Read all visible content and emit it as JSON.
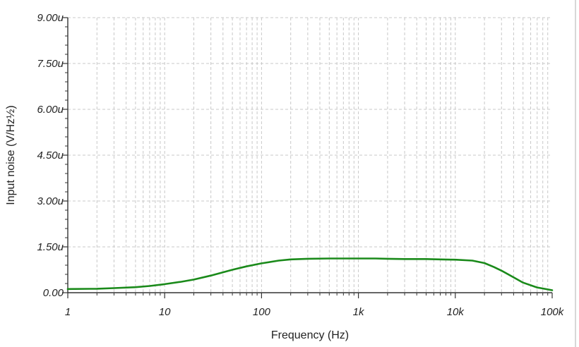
{
  "chart_data": {
    "type": "line",
    "title": "",
    "xlabel": "Frequency (Hz)",
    "ylabel": "Input noise (V/Hz½)",
    "x_scale": "log",
    "xlim": [
      1,
      100000
    ],
    "ylim": [
      0,
      9e-06
    ],
    "grid": true,
    "x_tick_values": [
      1,
      10,
      100,
      1000,
      10000,
      100000
    ],
    "x_tick_labels": [
      "1",
      "10",
      "100",
      "1k",
      "10k",
      "100k"
    ],
    "y_tick_values": [
      0,
      1.5e-06,
      3e-06,
      4.5e-06,
      6e-06,
      7.5e-06,
      9e-06
    ],
    "y_tick_labels": [
      "0.00",
      "1.50u",
      "3.00u",
      "4.50u",
      "6.00u",
      "7.50u",
      "9.00u"
    ],
    "line_color": "#1a8a1a",
    "series": [
      {
        "x": [
          1,
          2,
          3,
          5,
          7,
          10,
          15,
          20,
          30,
          50,
          70,
          100,
          150,
          200,
          300,
          500,
          700,
          1000,
          1500,
          2000,
          3000,
          5000,
          7000,
          10000,
          15000,
          20000,
          25000,
          30000,
          40000,
          50000,
          70000,
          100000
        ],
        "y": [
          1.2e-07,
          1.3e-07,
          1.5e-07,
          1.8e-07,
          2.2e-07,
          2.8e-07,
          3.6e-07,
          4.3e-07,
          5.6e-07,
          7.5e-07,
          8.6e-07,
          9.6e-07,
          1.05e-06,
          1.09e-06,
          1.11e-06,
          1.12e-06,
          1.12e-06,
          1.12e-06,
          1.12e-06,
          1.11e-06,
          1.1e-06,
          1.1e-06,
          1.09e-06,
          1.08e-06,
          1.05e-06,
          9.7e-07,
          8.4e-07,
          7.2e-07,
          5e-07,
          3.3e-07,
          1.7e-07,
          8e-08
        ]
      }
    ]
  }
}
